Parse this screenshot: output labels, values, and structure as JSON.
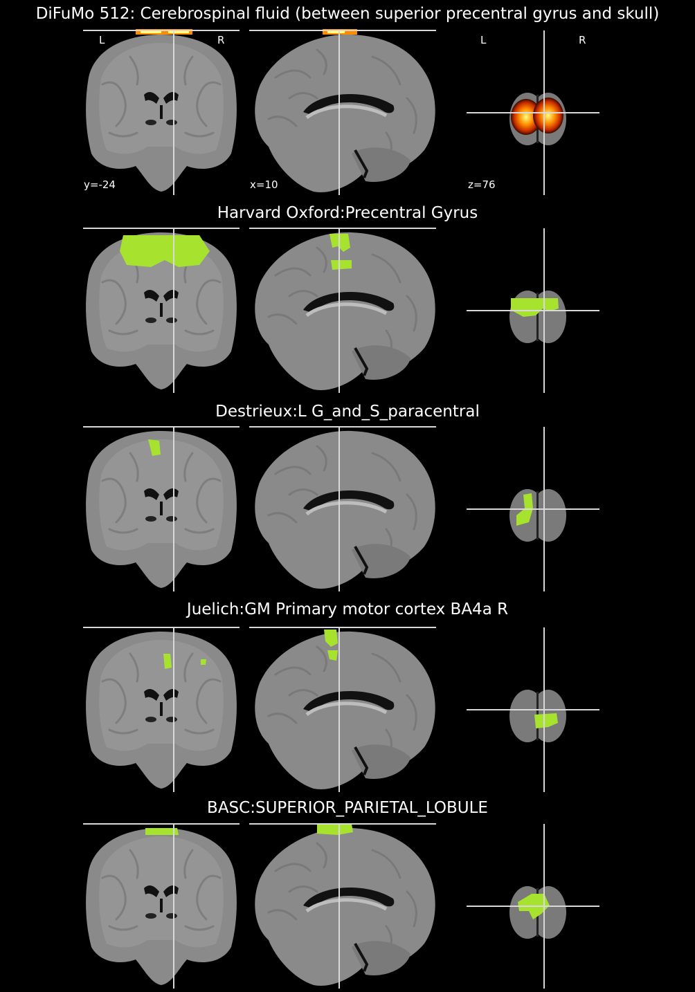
{
  "figure": {
    "rows": [
      {
        "title": "DiFuMo 512: Cerebrospinal fluid (between superior precentral gyrus and skull)",
        "overlay": "heat",
        "coords": {
          "coronal": "y=-24",
          "sagittal": "x=10",
          "axial": "z=76"
        },
        "orientation": {
          "left": "L",
          "right": "R"
        }
      },
      {
        "title": "Harvard Oxford:Precentral Gyrus",
        "overlay": "green"
      },
      {
        "title": "Destrieux:L G_and_S_paracentral",
        "overlay": "green"
      },
      {
        "title": "Juelich:GM Primary motor cortex BA4a R",
        "overlay": "green"
      },
      {
        "title": "BASC:SUPERIOR_PARIETAL_LOBULE",
        "overlay": "green"
      }
    ]
  },
  "colors": {
    "background": "#000000",
    "crosshair": "#d9d9d9",
    "brain": "#8a8a8a",
    "atlas_overlay": "#a6e22e",
    "heat_low": "#c42a00",
    "heat_mid": "#ff8c00",
    "heat_high": "#ffff80"
  }
}
